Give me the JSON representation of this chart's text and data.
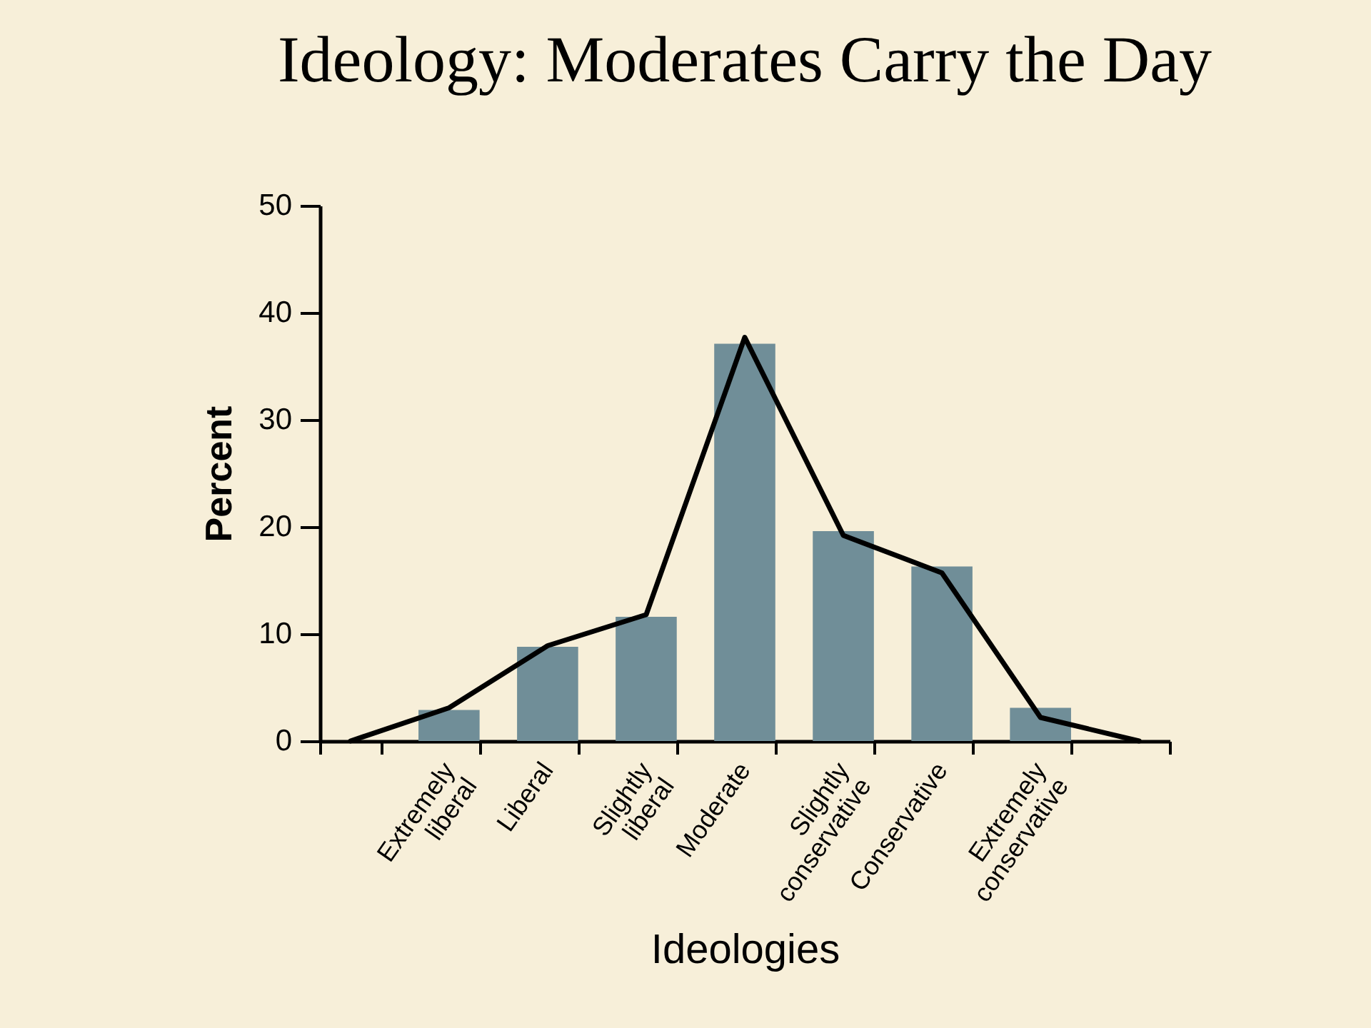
{
  "chart_data": {
    "type": "bar",
    "title": "Ideology: Moderates Carry the Day",
    "xlabel": "Ideologies",
    "ylabel": "Percent",
    "categories": [
      null,
      "Extremely liberal",
      "Liberal",
      "Slightly liberal",
      "Moderate",
      "Slightly conservative",
      "Conservative",
      "Extremely conservative",
      null
    ],
    "series": [
      {
        "color": "#708e98",
        "values": [
          null,
          2.9,
          8.8,
          11.6,
          37.1,
          19.6,
          16.3,
          3.1,
          null
        ]
      },
      {
        "type": "line",
        "color": "#000000",
        "values": [
          0,
          3.1,
          8.9,
          11.8,
          37.7,
          19.2,
          15.7,
          2.2,
          0
        ]
      }
    ],
    "ylim": [
      0,
      50
    ],
    "yticks": [
      0,
      10,
      20,
      30,
      40,
      50
    ],
    "line_style": "solid"
  }
}
